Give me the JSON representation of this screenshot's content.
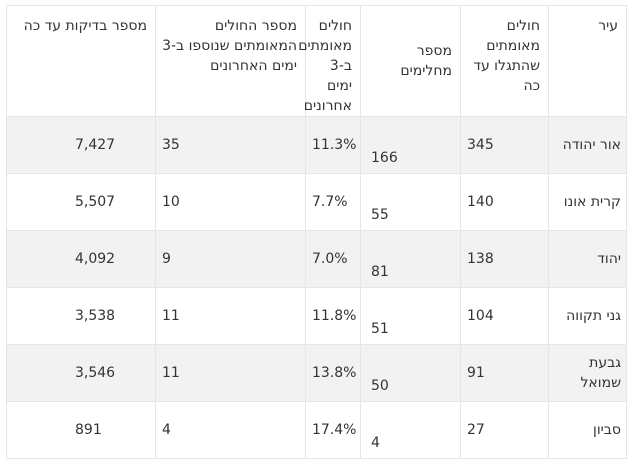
{
  "table": {
    "headers": {
      "city": "עיר",
      "confirmed": "חולים מאומתים שהתגלו עד כה",
      "recovered": "מספר מחלימים",
      "pct_last3": "חולים מאומתים ב-3 ימים אחרונים",
      "new_last3": "מספר החולים המאומתים שנוספו ב-3 ימים האחרונים",
      "tests": "מספר בדיקות עד כה"
    },
    "rows": [
      {
        "city": "אור יהודה",
        "confirmed": "345",
        "recovered": "166",
        "pct_last3": "11.3%",
        "new_last3": "35",
        "tests": "7,427"
      },
      {
        "city": "קרית אונו",
        "confirmed": "140",
        "recovered": "55",
        "pct_last3": "7.7%",
        "new_last3": "10",
        "tests": "5,507"
      },
      {
        "city": "יהוד",
        "confirmed": "138",
        "recovered": "81",
        "pct_last3": "7.0%",
        "new_last3": "9",
        "tests": "4,092"
      },
      {
        "city": "גני תקווה",
        "confirmed": "104",
        "recovered": "51",
        "pct_last3": "11.8%",
        "new_last3": "11",
        "tests": "3,538"
      },
      {
        "city": "גבעת שמואל",
        "confirmed": "91",
        "recovered": "50",
        "pct_last3": "13.8%",
        "new_last3": "11",
        "tests": "3,546"
      },
      {
        "city": "סביון",
        "confirmed": "27",
        "recovered": "4",
        "pct_last3": "17.4%",
        "new_last3": "4",
        "tests": "891"
      }
    ]
  }
}
